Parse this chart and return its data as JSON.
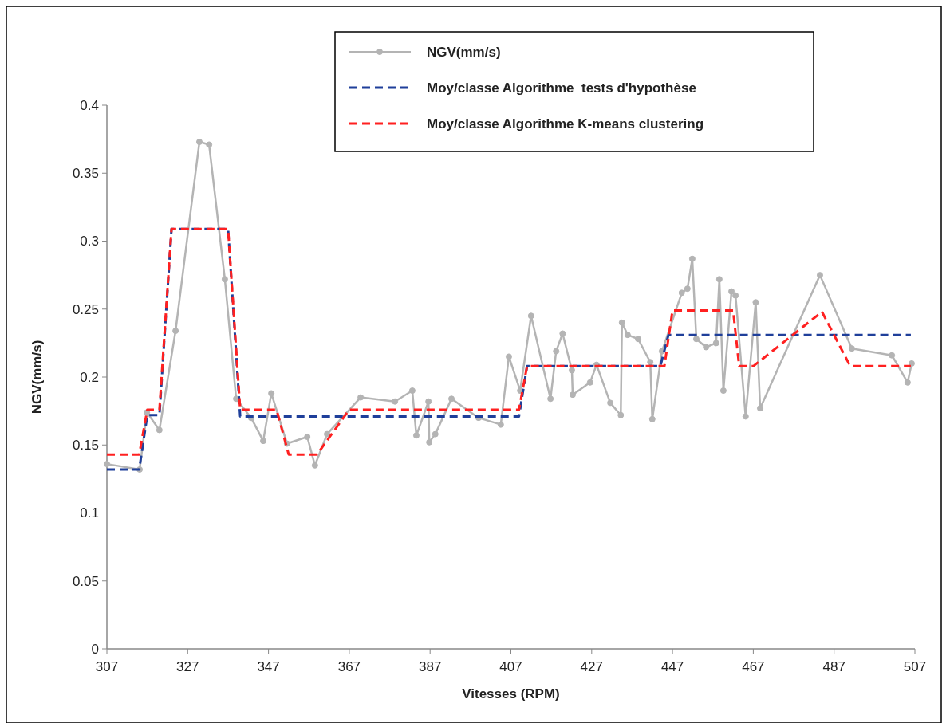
{
  "chart_data": {
    "type": "line",
    "xlabel": "Vitesses (RPM)",
    "ylabel": "NGV(mm/s)",
    "xlim": [
      307,
      507
    ],
    "xticks": [
      307,
      327,
      347,
      367,
      387,
      407,
      427,
      447,
      467,
      487,
      507
    ],
    "ylim": [
      0,
      0.4
    ],
    "yticks": [
      0,
      0.05,
      0.1,
      0.15,
      0.2,
      0.25,
      0.3,
      0.35,
      0.4
    ],
    "grid": false,
    "legend": "top right",
    "series": [
      {
        "name": "NGV(mm/s)",
        "color": "#b4b4b4",
        "marker": "circle",
        "line_style": "solid",
        "x": [
          307,
          315.1,
          316.9,
          320,
          324,
          329.9,
          332.3,
          336.2,
          339,
          342.7,
          345.7,
          347.7,
          351.6,
          356.6,
          358.5,
          361.5,
          369.8,
          378.3,
          382.6,
          383.6,
          386.6,
          386.8,
          388.3,
          392.3,
          399,
          404.5,
          406.5,
          409.3,
          412,
          416.8,
          418.2,
          419.8,
          422.1,
          422.3,
          426.6,
          428.2,
          431.6,
          434.2,
          434.5,
          435.9,
          438.5,
          441.5,
          442,
          444.4,
          449.3,
          450.7,
          451.9,
          452.9,
          455.3,
          457.8,
          458.6,
          459.6,
          461.6,
          462.6,
          465.1,
          467.6,
          468.7,
          483.5,
          491.4,
          501.3,
          505.2,
          506.2
        ],
        "values": [
          0.136,
          0.132,
          0.174,
          0.161,
          0.234,
          0.373,
          0.371,
          0.272,
          0.184,
          0.17,
          0.153,
          0.188,
          0.151,
          0.156,
          0.135,
          0.158,
          0.185,
          0.182,
          0.19,
          0.157,
          0.182,
          0.152,
          0.158,
          0.184,
          0.17,
          0.165,
          0.215,
          0.19,
          0.245,
          0.184,
          0.219,
          0.232,
          0.205,
          0.187,
          0.196,
          0.209,
          0.181,
          0.172,
          0.24,
          0.231,
          0.228,
          0.211,
          0.169,
          0.219,
          0.262,
          0.265,
          0.287,
          0.228,
          0.222,
          0.225,
          0.272,
          0.19,
          0.263,
          0.26,
          0.171,
          0.255,
          0.177,
          0.275,
          0.221,
          0.216,
          0.196,
          0.21
        ]
      },
      {
        "name": "Moy/classe Algorithme  tests d'hypothèse",
        "color": "#1f3f9a",
        "marker": "none",
        "line_style": "dashed",
        "x": [
          307,
          315,
          317,
          320,
          323,
          337,
          340,
          409,
          411,
          444,
          446,
          506
        ],
        "values": [
          0.132,
          0.132,
          0.172,
          0.172,
          0.309,
          0.309,
          0.171,
          0.171,
          0.208,
          0.208,
          0.231,
          0.231
        ]
      },
      {
        "name": "Moy/classe Algorithme K-means clustering",
        "color": "#ff2020",
        "marker": "none",
        "line_style": "dashed",
        "x": [
          307,
          315,
          317,
          320,
          323,
          337,
          340,
          349,
          352,
          359,
          367,
          409,
          411,
          445,
          447,
          462,
          463.5,
          467,
          484,
          491,
          506
        ],
        "values": [
          0.143,
          0.143,
          0.176,
          0.176,
          0.309,
          0.309,
          0.176,
          0.176,
          0.143,
          0.143,
          0.176,
          0.176,
          0.208,
          0.208,
          0.249,
          0.249,
          0.208,
          0.208,
          0.248,
          0.208,
          0.208
        ]
      }
    ]
  }
}
